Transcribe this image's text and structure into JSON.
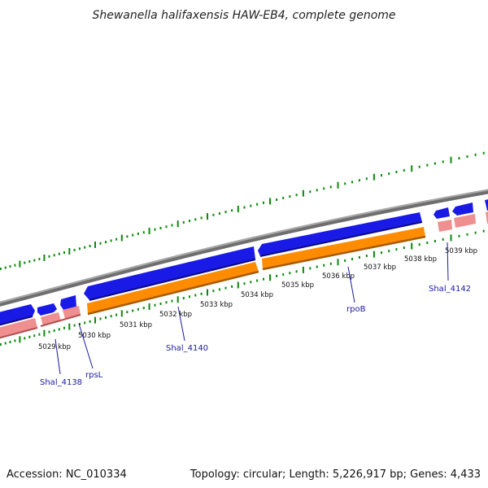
{
  "title": "Shewanella halifaxensis HAW-EB4, complete genome",
  "accession": "Accession: NC_010334",
  "topology": "Topology: circular; Length: 5,226,917 bp; Genes: 4,433",
  "colors": {
    "backbone": "#8c8c8c",
    "forward_cds": "#1a1ae6",
    "forward_cds_shadow": "#0a0a80",
    "reverse_cds": "#ff8c00",
    "reverse_cds_shadow": "#a85a00",
    "rna": "#ef8f8f",
    "rna_shadow": "#b05050",
    "gc_skew": "#0a8a0a",
    "label": "#1a1aa0"
  },
  "ruler": {
    "tick_labels": [
      "5029 kbp",
      "5030 kbp",
      "5031 kbp",
      "5032 kbp",
      "5033 kbp",
      "5034 kbp",
      "5035 kbp",
      "5036 kbp",
      "5037 kbp",
      "5038 kbp",
      "5039 kbp"
    ]
  },
  "gene_labels": [
    "Shal_4138",
    "rpsL",
    "Shal_4140",
    "rpoB",
    "Shal_4142"
  ]
}
